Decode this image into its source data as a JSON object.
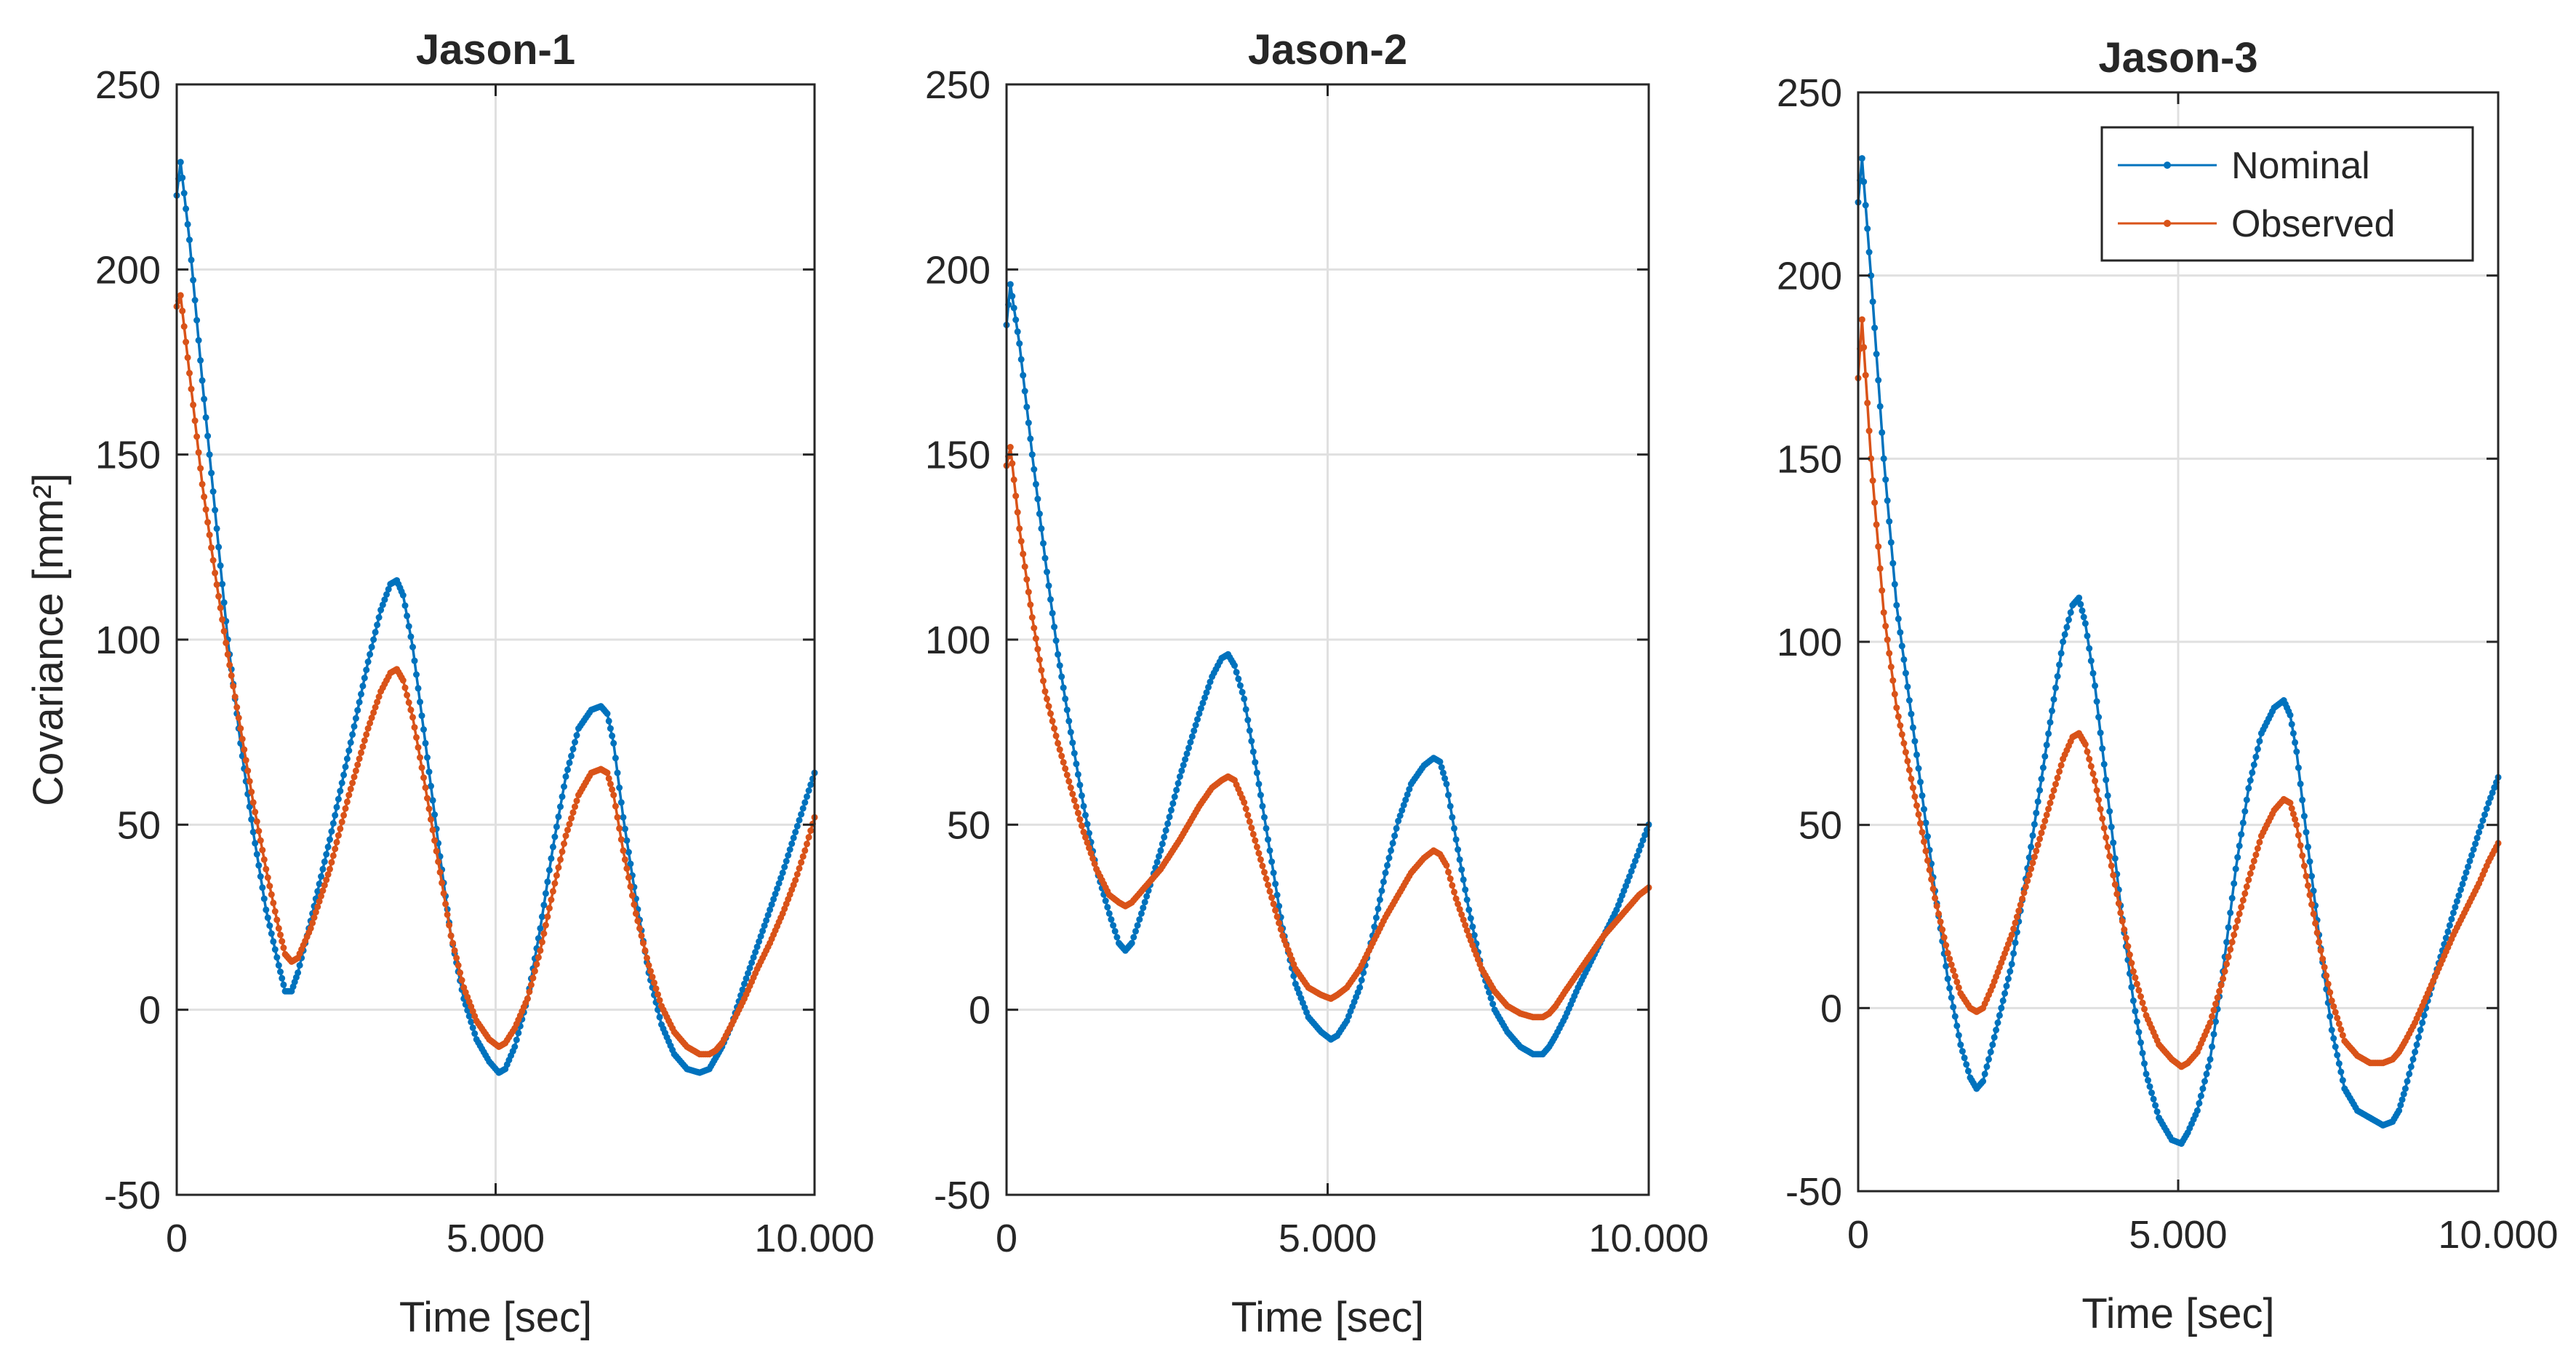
{
  "colors": {
    "nominal": "#0072BD",
    "observed": "#D95319",
    "grid": "#E0E0E0",
    "axis": "#262626"
  },
  "chart_data": [
    {
      "type": "line",
      "title": "Jason-1",
      "xlabel": "Time [sec]",
      "ylabel": "Covariance [mm²]",
      "xlim": [
        0,
        10000
      ],
      "ylim": [
        -50,
        250
      ],
      "yticks": [
        -50,
        0,
        50,
        100,
        150,
        200,
        250
      ],
      "yticklabels": [
        "-50",
        "0",
        "50",
        "100",
        "150",
        "200",
        "250"
      ],
      "xticks": [
        0,
        5000,
        10000
      ],
      "xticklabels": [
        "0",
        "5.000",
        "10.000"
      ],
      "grid": true,
      "series": [
        {
          "name": "Nominal",
          "x": [
            0,
            60,
            200,
            400,
            600,
            800,
            1000,
            1200,
            1400,
            1600,
            1700,
            1800,
            1900,
            2100,
            2400,
            2700,
            3000,
            3200,
            3350,
            3450,
            3550,
            3700,
            3900,
            4100,
            4300,
            4500,
            4700,
            4900,
            5050,
            5150,
            5300,
            5500,
            5700,
            5900,
            6100,
            6300,
            6500,
            6650,
            6750,
            6850,
            7000,
            7200,
            7400,
            7600,
            7800,
            8000,
            8200,
            8350,
            8450,
            8550,
            8700,
            8900,
            9100,
            9300,
            9500,
            9700,
            9850,
            10000
          ],
          "values": [
            220,
            229,
            208,
            170,
            135,
            100,
            72,
            48,
            27,
            12,
            5,
            5,
            10,
            24,
            46,
            70,
            94,
            108,
            115,
            116,
            112,
            98,
            72,
            45,
            20,
            3,
            -8,
            -14,
            -17,
            -16,
            -10,
            3,
            22,
            44,
            63,
            76,
            81,
            82,
            80,
            72,
            52,
            30,
            10,
            -4,
            -12,
            -16,
            -17,
            -16,
            -13,
            -10,
            -4,
            7,
            17,
            27,
            37,
            48,
            56,
            64
          ]
        },
        {
          "name": "Observed",
          "x": [
            0,
            60,
            200,
            400,
            600,
            800,
            1000,
            1200,
            1400,
            1600,
            1700,
            1800,
            1900,
            2100,
            2400,
            2700,
            3000,
            3200,
            3350,
            3450,
            3550,
            3700,
            3900,
            4100,
            4300,
            4500,
            4700,
            4900,
            5050,
            5150,
            5300,
            5500,
            5700,
            5900,
            6100,
            6300,
            6500,
            6650,
            6750,
            6850,
            7000,
            7200,
            7400,
            7600,
            7800,
            8000,
            8200,
            8350,
            8450,
            8550,
            8700,
            8900,
            9100,
            9300,
            9500,
            9700,
            9850,
            10000
          ],
          "values": [
            190,
            193,
            172,
            142,
            118,
            96,
            76,
            56,
            38,
            22,
            15,
            13,
            14,
            22,
            38,
            58,
            76,
            86,
            91,
            92,
            89,
            79,
            60,
            40,
            20,
            6,
            -3,
            -8,
            -10,
            -9,
            -5,
            3,
            16,
            32,
            47,
            58,
            64,
            65,
            64,
            58,
            43,
            26,
            12,
            1,
            -6,
            -10,
            -12,
            -12,
            -11,
            -9,
            -4,
            3,
            11,
            18,
            26,
            35,
            43,
            52
          ]
        }
      ]
    },
    {
      "type": "line",
      "title": "Jason-2",
      "xlabel": "Time [sec]",
      "ylabel": "",
      "xlim": [
        0,
        10000
      ],
      "ylim": [
        -50,
        250
      ],
      "yticks": [
        -50,
        0,
        50,
        100,
        150,
        200,
        250
      ],
      "yticklabels": [
        "-50",
        "0",
        "50",
        "100",
        "150",
        "200",
        "250"
      ],
      "xticks": [
        0,
        5000,
        10000
      ],
      "xticklabels": [
        "0",
        "5.000",
        "10.000"
      ],
      "grid": true,
      "series": [
        {
          "name": "Nominal",
          "x": [
            0,
            60,
            200,
            400,
            600,
            800,
            1000,
            1200,
            1400,
            1600,
            1750,
            1850,
            1950,
            2100,
            2400,
            2700,
            3000,
            3200,
            3350,
            3450,
            3550,
            3700,
            3900,
            4100,
            4300,
            4500,
            4700,
            4900,
            5050,
            5150,
            5300,
            5500,
            5700,
            5900,
            6100,
            6300,
            6500,
            6650,
            6750,
            6850,
            7000,
            7200,
            7400,
            7600,
            7800,
            8000,
            8200,
            8350,
            8450,
            8550,
            8700,
            8900,
            9100,
            9300,
            9500,
            9700,
            9850,
            10000
          ],
          "values": [
            185,
            196,
            180,
            150,
            122,
            96,
            75,
            55,
            38,
            26,
            18,
            16,
            18,
            26,
            43,
            63,
            80,
            90,
            95,
            96,
            93,
            84,
            64,
            43,
            22,
            7,
            -2,
            -6,
            -8,
            -7,
            -3,
            6,
            20,
            37,
            51,
            61,
            66,
            68,
            67,
            61,
            46,
            27,
            11,
            0,
            -6,
            -10,
            -12,
            -12,
            -10,
            -7,
            -2,
            6,
            13,
            20,
            27,
            36,
            43,
            50
          ]
        },
        {
          "name": "Observed",
          "x": [
            0,
            60,
            200,
            400,
            600,
            800,
            1000,
            1200,
            1400,
            1600,
            1750,
            1850,
            1950,
            2100,
            2400,
            2700,
            3000,
            3200,
            3350,
            3450,
            3550,
            3700,
            3900,
            4100,
            4300,
            4500,
            4700,
            4900,
            5050,
            5150,
            5300,
            5500,
            5700,
            5900,
            6100,
            6300,
            6500,
            6650,
            6750,
            6850,
            7000,
            7200,
            7400,
            7600,
            7800,
            8000,
            8200,
            8350,
            8450,
            8550,
            8700,
            8900,
            9100,
            9300,
            9500,
            9700,
            9850,
            10000
          ],
          "values": [
            147,
            152,
            130,
            106,
            86,
            72,
            60,
            48,
            38,
            31,
            29,
            28,
            29,
            32,
            38,
            46,
            55,
            60,
            62,
            63,
            62,
            56,
            44,
            32,
            20,
            11,
            6,
            4,
            3,
            4,
            6,
            11,
            18,
            25,
            31,
            37,
            41,
            43,
            42,
            39,
            30,
            20,
            11,
            5,
            1,
            -1,
            -2,
            -2,
            -1,
            1,
            5,
            10,
            15,
            20,
            24,
            28,
            31,
            33
          ]
        }
      ]
    },
    {
      "type": "line",
      "title": "Jason-3",
      "xlabel": "Time [sec]",
      "ylabel": "",
      "xlim": [
        0,
        10000
      ],
      "ylim": [
        -50,
        250
      ],
      "yticks": [
        -50,
        0,
        50,
        100,
        150,
        200,
        250
      ],
      "yticklabels": [
        "-50",
        "0",
        "50",
        "100",
        "150",
        "200",
        "250"
      ],
      "xticks": [
        0,
        5000,
        10000
      ],
      "xticklabels": [
        "0",
        "5.000",
        "10.000"
      ],
      "grid": true,
      "legend": {
        "placement": "top-right",
        "entries": [
          "Nominal",
          "Observed"
        ]
      },
      "series": [
        {
          "name": "Nominal",
          "x": [
            0,
            60,
            200,
            400,
            600,
            800,
            1000,
            1200,
            1400,
            1600,
            1750,
            1850,
            1950,
            2100,
            2400,
            2700,
            3000,
            3200,
            3350,
            3450,
            3550,
            3700,
            3900,
            4100,
            4300,
            4500,
            4700,
            4900,
            5050,
            5150,
            5300,
            5500,
            5700,
            5900,
            6100,
            6300,
            6500,
            6650,
            6750,
            6850,
            7000,
            7200,
            7400,
            7600,
            7800,
            8000,
            8200,
            8350,
            8450,
            8550,
            8700,
            8900,
            9100,
            9300,
            9500,
            9700,
            9850,
            10000
          ],
          "values": [
            220,
            232,
            200,
            150,
            110,
            84,
            58,
            32,
            8,
            -10,
            -19,
            -22,
            -20,
            -10,
            12,
            44,
            78,
            100,
            110,
            112,
            105,
            88,
            58,
            28,
            2,
            -18,
            -30,
            -36,
            -37,
            -34,
            -28,
            -14,
            10,
            38,
            60,
            75,
            82,
            84,
            80,
            70,
            48,
            20,
            -6,
            -22,
            -28,
            -30,
            -32,
            -31,
            -28,
            -22,
            -12,
            2,
            14,
            26,
            37,
            48,
            56,
            63
          ]
        },
        {
          "name": "Observed",
          "x": [
            0,
            60,
            200,
            400,
            600,
            800,
            1000,
            1200,
            1400,
            1600,
            1750,
            1850,
            1950,
            2100,
            2400,
            2700,
            3000,
            3200,
            3350,
            3450,
            3550,
            3700,
            3900,
            4100,
            4300,
            4500,
            4700,
            4900,
            5050,
            5150,
            5300,
            5500,
            5700,
            5900,
            6100,
            6300,
            6500,
            6650,
            6750,
            6850,
            7000,
            7200,
            7400,
            7600,
            7800,
            8000,
            8200,
            8350,
            8450,
            8550,
            8700,
            8900,
            9100,
            9300,
            9500,
            9700,
            9850,
            10000
          ],
          "values": [
            172,
            188,
            150,
            108,
            82,
            65,
            48,
            30,
            15,
            4,
            0,
            -1,
            0,
            6,
            20,
            38,
            56,
            68,
            74,
            75,
            72,
            62,
            44,
            26,
            10,
            -2,
            -10,
            -14,
            -16,
            -15,
            -12,
            -4,
            8,
            22,
            35,
            47,
            54,
            57,
            56,
            50,
            36,
            18,
            2,
            -9,
            -13,
            -15,
            -15,
            -14,
            -12,
            -9,
            -4,
            4,
            12,
            20,
            27,
            34,
            40,
            45
          ]
        }
      ]
    }
  ]
}
